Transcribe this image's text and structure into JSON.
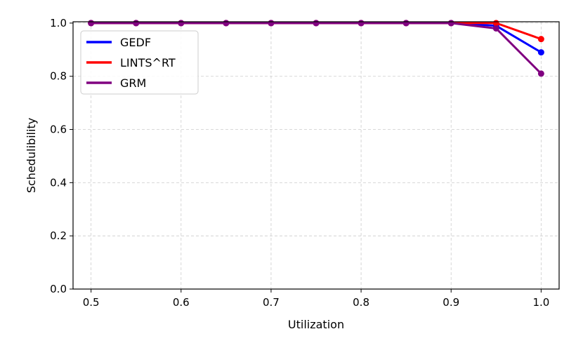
{
  "chart_data": {
    "type": "line",
    "x": [
      0.5,
      0.55,
      0.6,
      0.65,
      0.7,
      0.75,
      0.8,
      0.85,
      0.9,
      0.95,
      1.0
    ],
    "series": [
      {
        "name": "GEDF",
        "color": "#0000ff",
        "values": [
          1.0,
          1.0,
          1.0,
          1.0,
          1.0,
          1.0,
          1.0,
          1.0,
          1.0,
          0.99,
          0.89
        ]
      },
      {
        "name": "LINTS^RT",
        "color": "#ff0000",
        "values": [
          1.0,
          1.0,
          1.0,
          1.0,
          1.0,
          1.0,
          1.0,
          1.0,
          1.0,
          1.0,
          0.94
        ]
      },
      {
        "name": "GRM",
        "color": "#800080",
        "values": [
          1.0,
          1.0,
          1.0,
          1.0,
          1.0,
          1.0,
          1.0,
          1.0,
          1.0,
          0.98,
          0.81
        ]
      }
    ],
    "xlabel": "Utilization",
    "ylabel": "Schedulibility",
    "xlim": [
      0.48,
      1.02
    ],
    "ylim": [
      0.0,
      1.005
    ],
    "xticks": [
      "0.5",
      "0.6",
      "0.7",
      "0.8",
      "0.9",
      "1.0"
    ],
    "yticks": [
      "0.0",
      "0.2",
      "0.4",
      "0.6",
      "0.8",
      "1.0"
    ],
    "grid": true,
    "legend_position": "top-left"
  }
}
